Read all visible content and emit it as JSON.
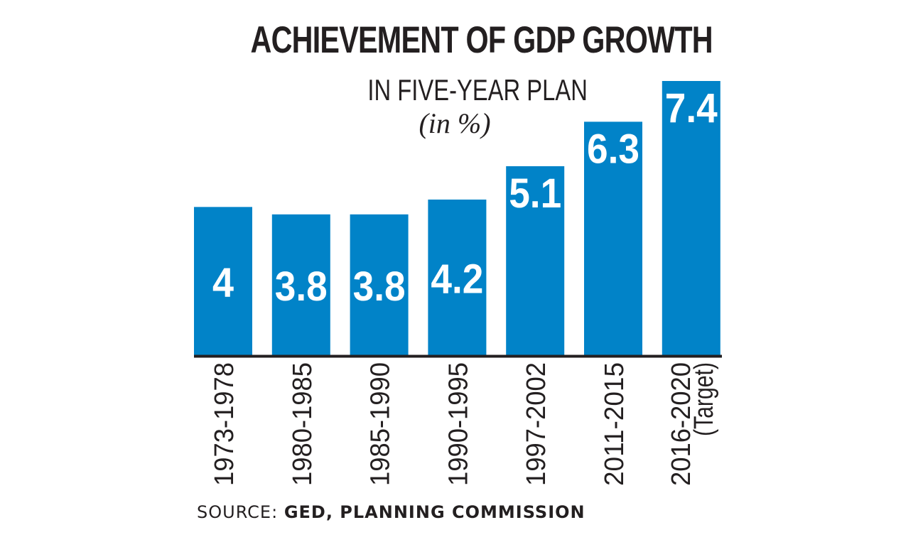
{
  "chart_data": {
    "type": "bar",
    "title": "ACHIEVEMENT OF GDP GROWTH",
    "subtitle": "IN FIVE-YEAR PLAN",
    "unit": "(in %)",
    "categories": [
      [
        "1973-1978"
      ],
      [
        "1980-1985"
      ],
      [
        "1985-1990"
      ],
      [
        "1990-1995"
      ],
      [
        "1997-2002"
      ],
      [
        "2011-2015"
      ],
      [
        "2016-2020",
        "(Target)"
      ]
    ],
    "values": [
      4,
      3.8,
      3.8,
      4.2,
      5.1,
      6.3,
      7.4
    ],
    "data_labels": [
      "4",
      "3.8",
      "3.8",
      "4.2",
      "5.1",
      "6.3",
      "7.4"
    ],
    "bar_color": "#0183c8",
    "axis_color": "#231f20",
    "label_color": "#ffffff",
    "grid": false
  },
  "source": {
    "prefix": "SOURCE: ",
    "text": "GED, PLANNING COMMISSION"
  }
}
